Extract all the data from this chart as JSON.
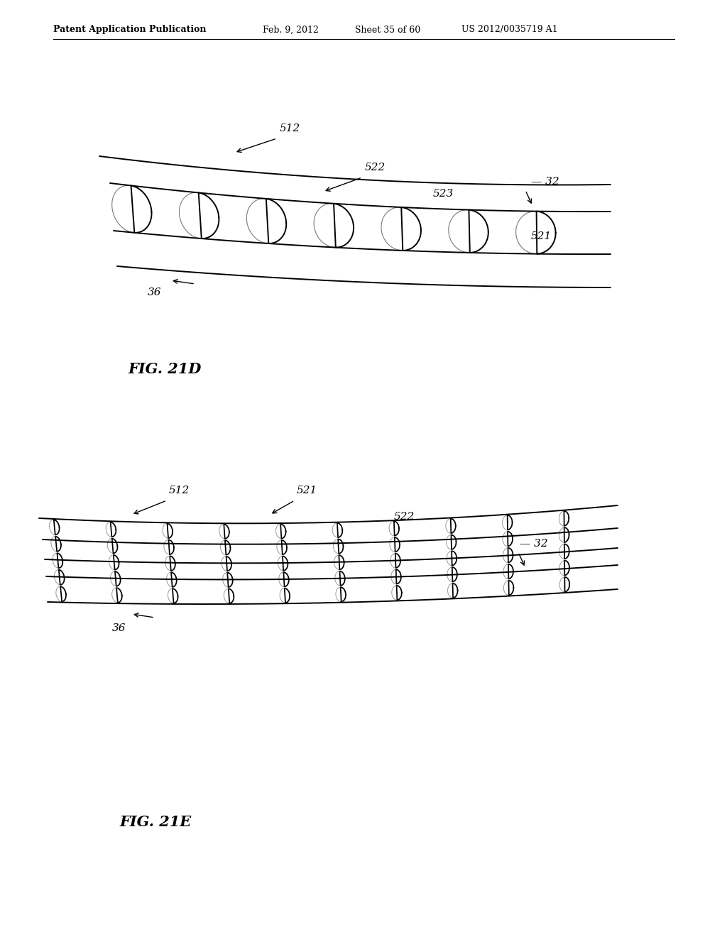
{
  "background_color": "#ffffff",
  "line_color": "#000000",
  "header_text": "Patent Application Publication",
  "header_date": "Feb. 9, 2012",
  "header_sheet": "Sheet 35 of 60",
  "header_patent": "US 2012/0035719 A1",
  "fig21d_label": "FIG. 21D",
  "fig21e_label": "FIG. 21E"
}
